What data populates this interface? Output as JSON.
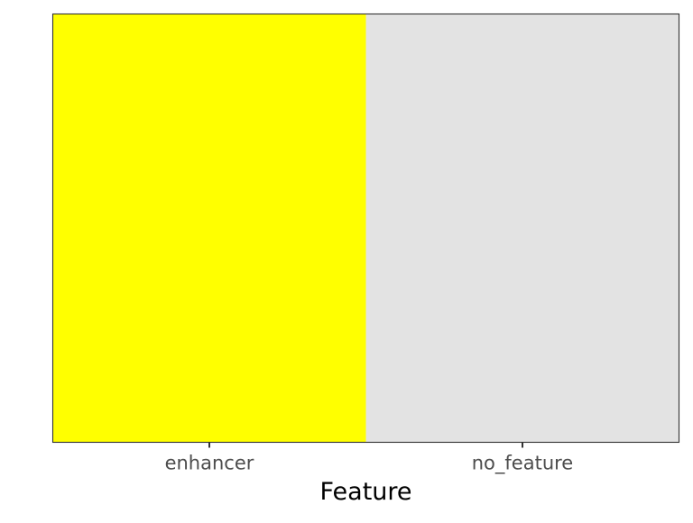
{
  "chart_data": {
    "type": "heatmap",
    "xlabel": "Feature",
    "ylabel": "",
    "title": "",
    "categories": [
      "enhancer",
      "no_feature"
    ],
    "colors": {
      "enhancer": "#FFFF00",
      "no_feature": "#E3E3E3"
    },
    "panel_border_color": "#333333",
    "tick_label_color": "#4D4D4D",
    "axis_title_color": "#000000",
    "grid": false,
    "legend": "none"
  }
}
